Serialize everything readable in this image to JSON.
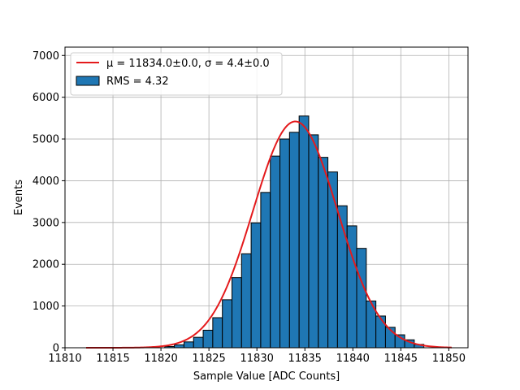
{
  "chart_data": {
    "type": "bar",
    "title": "",
    "xlabel": "Sample Value [ADC Counts]",
    "ylabel": "Events",
    "xlim": [
      11810,
      11852
    ],
    "ylim": [
      0,
      7200
    ],
    "grid": true,
    "legend_position": "top-left",
    "x_ticks": [
      11810,
      11815,
      11820,
      11825,
      11830,
      11835,
      11840,
      11845,
      11850
    ],
    "y_ticks": [
      0,
      1000,
      2000,
      3000,
      4000,
      5000,
      6000,
      7000
    ],
    "histogram": {
      "name": "RMS = 4.32",
      "color": "#1f77b4",
      "edge_color": "#000000",
      "bin_edges": [
        11820.4,
        11821.4,
        11822.4,
        11823.4,
        11824.4,
        11825.4,
        11826.4,
        11827.4,
        11828.4,
        11829.4,
        11830.4,
        11831.4,
        11832.4,
        11833.4,
        11834.4,
        11835.4,
        11836.4,
        11837.4,
        11838.4,
        11839.4,
        11840.4,
        11841.4,
        11842.4,
        11843.4,
        11844.4,
        11845.4,
        11846.4,
        11847.4
      ],
      "counts": [
        30,
        70,
        140,
        250,
        420,
        720,
        1150,
        1680,
        2250,
        2990,
        3720,
        4590,
        5000,
        5160,
        5550,
        5100,
        4560,
        4210,
        3400,
        2920,
        2380,
        1120,
        760,
        490,
        310,
        190,
        80
      ]
    },
    "fit": {
      "name": "$\\mu = 11834.0\\pm0.0$, $\\sigma = 4.4\\pm0.0$",
      "legend_label": "μ = 11834.0±0.0, σ = 4.4±0.0",
      "color": "#e41a1c",
      "mu": 11834.0,
      "sigma": 4.4,
      "amplitude": 5420,
      "x_range": [
        11812.2,
        11850.3
      ]
    }
  }
}
